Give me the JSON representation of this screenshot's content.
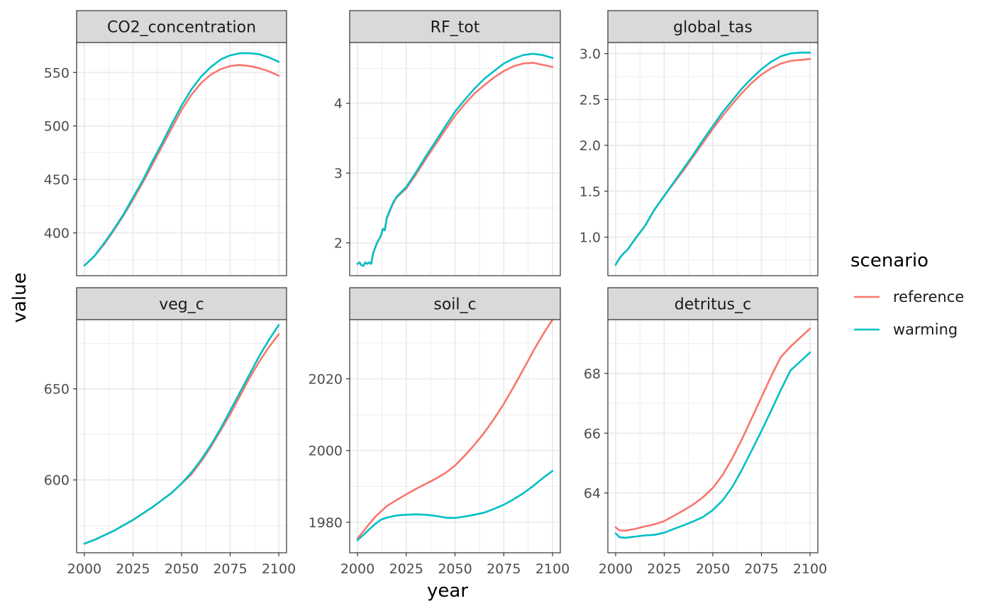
{
  "chart_data": {
    "type": "line",
    "xlabel": "year",
    "ylabel": "value",
    "legend": {
      "title": "scenario",
      "placement": "right",
      "entries": [
        {
          "name": "reference",
          "color": "#F8766D"
        },
        {
          "name": "warming",
          "color": "#00BFC4"
        }
      ]
    },
    "grid": true,
    "layout": {
      "nrow": 2,
      "ncol": 3,
      "scales": "free_y"
    },
    "x_ticks": [
      2000,
      2025,
      2050,
      2075,
      2100
    ],
    "panels": [
      {
        "title": "CO2_concentration",
        "xlim": [
          1996,
          2104
        ],
        "ylim": [
          360,
          578
        ],
        "y_ticks": [
          400,
          450,
          500,
          550
        ],
        "y_tick_labels": [
          "400",
          "450",
          "500",
          "550"
        ],
        "series": [
          {
            "name": "reference",
            "color": "#F8766D",
            "x": [
              2000,
              2005,
              2010,
              2015,
              2020,
              2025,
              2030,
              2035,
              2040,
              2045,
              2050,
              2055,
              2060,
              2065,
              2070,
              2075,
              2080,
              2085,
              2090,
              2095,
              2100
            ],
            "y": [
              369.5,
              378,
              389,
              402,
              416,
              431,
              447,
              464,
              481,
              498,
              515,
              529,
              540,
              548,
              553,
              556,
              557,
              556,
              554,
              551,
              547
            ]
          },
          {
            "name": "warming",
            "color": "#00BFC4",
            "x": [
              2000,
              2005,
              2010,
              2015,
              2020,
              2025,
              2030,
              2035,
              2040,
              2045,
              2050,
              2055,
              2060,
              2065,
              2070,
              2075,
              2080,
              2085,
              2090,
              2095,
              2100
            ],
            "y": [
              369.5,
              378,
              390,
              403,
              417,
              433,
              449,
              467,
              484,
              502,
              519,
              534,
              546,
              555,
              562,
              566,
              568,
              568,
              567,
              564,
              560
            ]
          }
        ]
      },
      {
        "title": "RF_tot",
        "xlim": [
          1996,
          2104
        ],
        "ylim": [
          1.53,
          4.87
        ],
        "y_ticks": [
          2,
          3,
          4
        ],
        "y_tick_labels": [
          "2",
          "3",
          "4"
        ],
        "series": [
          {
            "name": "reference",
            "color": "#F8766D",
            "x": [
              2000,
              2001,
              2002,
              2003,
              2004,
              2005,
              2006,
              2007,
              2008,
              2010,
              2012,
              2013,
              2014,
              2015,
              2018,
              2020,
              2025,
              2030,
              2035,
              2040,
              2045,
              2050,
              2055,
              2060,
              2065,
              2070,
              2075,
              2080,
              2085,
              2090,
              2095,
              2100
            ],
            "y": [
              1.7,
              1.72,
              1.68,
              1.67,
              1.72,
              1.7,
              1.72,
              1.7,
              1.85,
              2.0,
              2.1,
              2.2,
              2.18,
              2.35,
              2.55,
              2.65,
              2.78,
              2.98,
              3.2,
              3.41,
              3.62,
              3.82,
              3.99,
              4.14,
              4.26,
              4.37,
              4.46,
              4.53,
              4.57,
              4.58,
              4.55,
              4.52
            ]
          },
          {
            "name": "warming",
            "color": "#00BFC4",
            "x": [
              2000,
              2001,
              2002,
              2003,
              2004,
              2005,
              2006,
              2007,
              2008,
              2010,
              2012,
              2013,
              2014,
              2015,
              2018,
              2020,
              2025,
              2030,
              2035,
              2040,
              2045,
              2050,
              2055,
              2060,
              2065,
              2070,
              2075,
              2080,
              2085,
              2090,
              2095,
              2100
            ],
            "y": [
              1.7,
              1.72,
              1.68,
              1.67,
              1.72,
              1.7,
              1.72,
              1.7,
              1.85,
              2.0,
              2.1,
              2.2,
              2.18,
              2.36,
              2.56,
              2.66,
              2.8,
              3.01,
              3.24,
              3.45,
              3.67,
              3.88,
              4.05,
              4.21,
              4.35,
              4.46,
              4.57,
              4.64,
              4.69,
              4.71,
              4.69,
              4.65
            ]
          }
        ]
      },
      {
        "title": "global_tas",
        "xlim": [
          1996,
          2104
        ],
        "ylim": [
          0.58,
          3.12
        ],
        "y_ticks": [
          1.0,
          1.5,
          2.0,
          2.5,
          3.0
        ],
        "y_tick_labels": [
          "1.0",
          "1.5",
          "2.0",
          "2.5",
          "3.0"
        ],
        "series": [
          {
            "name": "reference",
            "color": "#F8766D",
            "x": [
              2000,
              2002,
              2004,
              2006,
              2008,
              2010,
              2015,
              2020,
              2025,
              2030,
              2035,
              2040,
              2045,
              2050,
              2055,
              2060,
              2065,
              2070,
              2075,
              2080,
              2085,
              2090,
              2095,
              2100
            ],
            "y": [
              0.7,
              0.77,
              0.82,
              0.86,
              0.92,
              0.98,
              1.12,
              1.3,
              1.45,
              1.59,
              1.73,
              1.88,
              2.03,
              2.18,
              2.32,
              2.45,
              2.57,
              2.68,
              2.77,
              2.84,
              2.89,
              2.92,
              2.93,
              2.94
            ]
          },
          {
            "name": "warming",
            "color": "#00BFC4",
            "x": [
              2000,
              2002,
              2004,
              2006,
              2008,
              2010,
              2015,
              2020,
              2025,
              2030,
              2035,
              2040,
              2045,
              2050,
              2055,
              2060,
              2065,
              2070,
              2075,
              2080,
              2085,
              2090,
              2095,
              2100
            ],
            "y": [
              0.7,
              0.77,
              0.82,
              0.86,
              0.92,
              0.98,
              1.12,
              1.3,
              1.45,
              1.6,
              1.75,
              1.9,
              2.06,
              2.21,
              2.36,
              2.49,
              2.62,
              2.73,
              2.83,
              2.91,
              2.97,
              3.0,
              3.01,
              3.01
            ]
          }
        ]
      },
      {
        "title": "veg_c",
        "xlim": [
          1996,
          2104
        ],
        "ylim": [
          560,
          688
        ],
        "y_ticks": [
          600,
          650
        ],
        "y_tick_labels": [
          "600",
          "650"
        ],
        "series": [
          {
            "name": "reference",
            "color": "#F8766D",
            "x": [
              2000,
              2005,
              2010,
              2015,
              2020,
              2025,
              2030,
              2035,
              2040,
              2045,
              2050,
              2055,
              2060,
              2065,
              2070,
              2075,
              2080,
              2085,
              2090,
              2095,
              2100
            ],
            "y": [
              565,
              567,
              569.5,
              572,
              575,
              578,
              581.5,
              585,
              589,
              593,
              598,
              603,
              610,
              618,
              627,
              636,
              646,
              656,
              665,
              673,
              680
            ]
          },
          {
            "name": "warming",
            "color": "#00BFC4",
            "x": [
              2000,
              2005,
              2010,
              2015,
              2020,
              2025,
              2030,
              2035,
              2040,
              2045,
              2050,
              2055,
              2060,
              2065,
              2070,
              2075,
              2080,
              2085,
              2090,
              2095,
              2100
            ],
            "y": [
              565,
              567,
              569.5,
              572,
              575,
              578,
              581.5,
              585,
              589,
              593,
              598,
              604,
              611,
              619,
              628,
              638,
              648,
              658,
              668,
              677,
              685
            ]
          }
        ]
      },
      {
        "title": "soil_c",
        "xlim": [
          1996,
          2104
        ],
        "ylim": [
          1971.5,
          2036.5
        ],
        "y_ticks": [
          1980,
          2000,
          2020
        ],
        "y_tick_labels": [
          "1980",
          "2000",
          "2020"
        ],
        "series": [
          {
            "name": "reference",
            "color": "#F8766D",
            "x": [
              2000,
              2003,
              2006,
              2009,
              2012,
              2015,
              2020,
              2025,
              2030,
              2035,
              2040,
              2045,
              2050,
              2055,
              2060,
              2065,
              2070,
              2075,
              2080,
              2085,
              2090,
              2095,
              2100
            ],
            "y": [
              1975.5,
              1977.5,
              1979.5,
              1981.5,
              1983,
              1984.5,
              1986.2,
              1987.8,
              1989.3,
              1990.7,
              1992.1,
              1993.7,
              1995.8,
              1998.6,
              2001.6,
              2005,
              2008.8,
              2013,
              2017.7,
              2022.6,
              2027.6,
              2032.3,
              2036.5
            ]
          },
          {
            "name": "warming",
            "color": "#00BFC4",
            "x": [
              2000,
              2003,
              2006,
              2009,
              2012,
              2015,
              2020,
              2025,
              2030,
              2035,
              2040,
              2045,
              2050,
              2055,
              2060,
              2065,
              2070,
              2075,
              2080,
              2085,
              2090,
              2095,
              2100
            ],
            "y": [
              1975,
              1976.5,
              1978,
              1979.5,
              1980.7,
              1981.3,
              1981.9,
              1982.1,
              1982.2,
              1982.1,
              1981.8,
              1981.3,
              1981.2,
              1981.6,
              1982.1,
              1982.7,
              1983.7,
              1984.9,
              1986.4,
              1988.1,
              1990.1,
              1992.3,
              1994.3
            ]
          }
        ]
      },
      {
        "title": "detritus_c",
        "xlim": [
          1996,
          2104
        ],
        "ylim": [
          62.0,
          69.8
        ],
        "y_ticks": [
          64,
          66,
          68
        ],
        "y_tick_labels": [
          "64",
          "66",
          "68"
        ],
        "series": [
          {
            "name": "reference",
            "color": "#F8766D",
            "x": [
              2000,
              2002,
              2005,
              2010,
              2015,
              2020,
              2025,
              2030,
              2035,
              2040,
              2045,
              2050,
              2055,
              2060,
              2065,
              2070,
              2075,
              2080,
              2085,
              2090,
              2095,
              2100
            ],
            "y": [
              62.85,
              62.75,
              62.74,
              62.8,
              62.88,
              62.95,
              63.06,
              63.24,
              63.42,
              63.62,
              63.86,
              64.17,
              64.6,
              65.16,
              65.8,
              66.5,
              67.2,
              67.9,
              68.55,
              68.9,
              69.2,
              69.5
            ]
          },
          {
            "name": "warming",
            "color": "#00BFC4",
            "x": [
              2000,
              2002,
              2005,
              2010,
              2015,
              2020,
              2025,
              2030,
              2035,
              2040,
              2045,
              2050,
              2055,
              2060,
              2065,
              2070,
              2075,
              2080,
              2085,
              2090,
              2095,
              2100
            ],
            "y": [
              62.65,
              62.52,
              62.5,
              62.54,
              62.58,
              62.6,
              62.67,
              62.8,
              62.92,
              63.05,
              63.2,
              63.43,
              63.75,
              64.2,
              64.78,
              65.42,
              66.07,
              66.75,
              67.45,
              68.1,
              68.4,
              68.7
            ]
          }
        ]
      }
    ]
  }
}
